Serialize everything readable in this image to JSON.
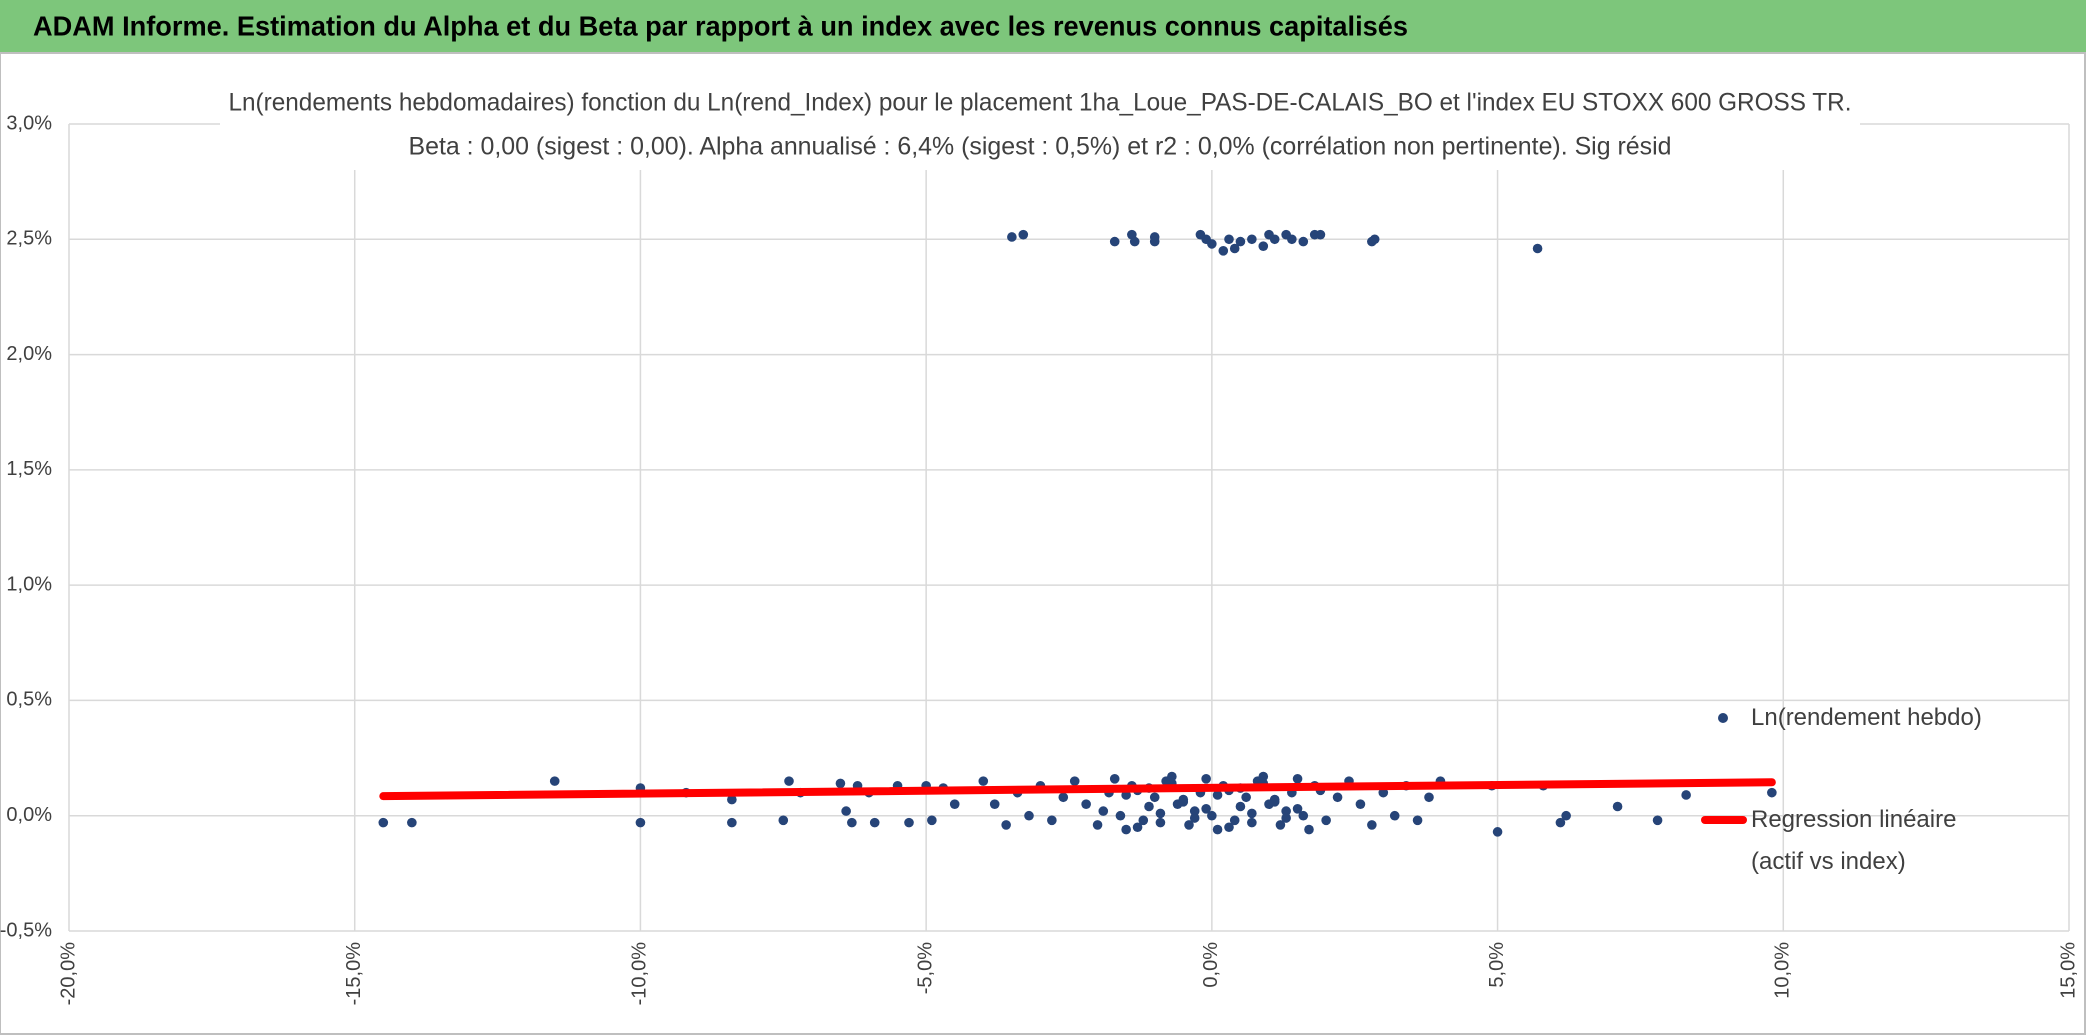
{
  "header": {
    "title": "ADAM Informe. Estimation du Alpha et du Beta par rapport à un index avec les revenus connus capitalisés"
  },
  "chart_data": {
    "type": "scatter",
    "title": "Ln(rendements hebdomadaires) fonction du Ln(rend_Index) pour le placement 1ha_Loue_PAS-DE-CALAIS_BO et l'index EU STOXX 600 GROSS TR.",
    "subtitle": "Beta : 0,00 (sigest : 0,00). Alpha annualisé : 6,4% (sigest : 0,5%) et r2 : 0,0% (corrélation non pertinente). Sig résid",
    "xlim": [
      -20,
      15
    ],
    "xticks": [
      {
        "value": -20,
        "label": "-20,0%"
      },
      {
        "value": -15,
        "label": "-15,0%"
      },
      {
        "value": -10,
        "label": "-10,0%"
      },
      {
        "value": -5,
        "label": "-5,0%"
      },
      {
        "value": 0,
        "label": "0,0%"
      },
      {
        "value": 5,
        "label": "5,0%"
      },
      {
        "value": 10,
        "label": "10,0%"
      },
      {
        "value": 15,
        "label": "15,0%"
      }
    ],
    "ylim": [
      -0.5,
      3.0
    ],
    "yticks": [
      {
        "value": -0.5,
        "label": "-0,5%"
      },
      {
        "value": 0,
        "label": "0,0%"
      },
      {
        "value": 0.5,
        "label": "0,5%"
      },
      {
        "value": 1.0,
        "label": "1,0%"
      },
      {
        "value": 1.5,
        "label": "1,5%"
      },
      {
        "value": 2.0,
        "label": "2,0%"
      },
      {
        "value": 2.5,
        "label": "2,5%"
      },
      {
        "value": 3.0,
        "label": "3,0%"
      }
    ],
    "grid": true,
    "series": [
      {
        "name": "Ln(rendement hebdo)",
        "color": "#264478",
        "x": [
          -3.5,
          -3.3,
          -1.7,
          -1.4,
          -1.35,
          -1.0,
          -1.0,
          -0.2,
          -0.1,
          0.0,
          0.2,
          0.3,
          0.4,
          0.5,
          0.7,
          0.9,
          1.0,
          1.1,
          1.3,
          1.4,
          1.6,
          1.8,
          1.9,
          2.8,
          2.85,
          5.7,
          -14.5,
          -14.0,
          -11.5,
          -10.0,
          -10.0,
          -9.2,
          -8.4,
          -8.4,
          -7.5,
          -7.4,
          -7.2,
          -6.5,
          -6.4,
          -6.3,
          -6.2,
          -6.0,
          -5.9,
          -5.5,
          -5.3,
          -5.0,
          -4.9,
          -4.7,
          -4.5,
          4.9,
          5.0,
          5.8,
          6.1,
          6.2,
          7.1,
          7.8,
          8.3,
          9.8,
          -4.0,
          -3.8,
          -3.6,
          -3.4,
          -3.2,
          -3.0,
          -2.8,
          -2.6,
          -2.4,
          -2.2,
          -2.0,
          -1.8,
          -1.6,
          -1.4,
          -1.2,
          -1.0,
          -0.8,
          -0.6,
          -0.4,
          -0.2,
          0.0,
          0.2,
          0.4,
          0.6,
          0.8,
          1.0,
          1.2,
          1.4,
          1.6,
          1.8,
          2.0,
          2.2,
          2.4,
          2.6,
          2.8,
          3.0,
          3.2,
          3.4,
          3.6,
          3.8,
          4.0,
          -1.9,
          -1.7,
          -1.5,
          -1.3,
          -1.1,
          -0.9,
          -0.7,
          -0.5,
          -0.3,
          -0.1,
          0.1,
          0.3,
          0.5,
          0.7,
          0.9,
          1.1,
          1.3,
          1.5,
          1.7,
          1.9,
          -1.5,
          -1.3,
          -1.1,
          -0.9,
          -0.7,
          -0.5,
          -0.3,
          -0.1,
          0.1,
          0.3,
          0.5,
          0.7,
          0.9,
          1.1,
          1.3,
          1.5
        ],
        "values": [
          2.51,
          2.52,
          2.49,
          2.52,
          2.49,
          2.51,
          2.49,
          2.52,
          2.5,
          2.48,
          2.45,
          2.5,
          2.46,
          2.49,
          2.5,
          2.47,
          2.52,
          2.5,
          2.52,
          2.5,
          2.49,
          2.52,
          2.52,
          2.49,
          2.5,
          2.46,
          -0.03,
          -0.03,
          0.15,
          0.12,
          -0.03,
          0.1,
          0.07,
          -0.03,
          -0.02,
          0.15,
          0.1,
          0.14,
          0.02,
          -0.03,
          0.13,
          0.1,
          -0.03,
          0.13,
          -0.03,
          0.13,
          -0.02,
          0.12,
          0.05,
          0.13,
          -0.07,
          0.13,
          -0.03,
          0.0,
          0.04,
          -0.02,
          0.09,
          0.1,
          0.15,
          0.05,
          -0.04,
          0.1,
          0.0,
          0.13,
          -0.02,
          0.08,
          0.15,
          0.05,
          -0.04,
          0.1,
          0.0,
          0.13,
          -0.02,
          0.08,
          0.15,
          0.05,
          -0.04,
          0.1,
          0.0,
          0.13,
          -0.02,
          0.08,
          0.15,
          0.05,
          -0.04,
          0.1,
          0.0,
          0.13,
          -0.02,
          0.08,
          0.15,
          0.05,
          -0.04,
          0.1,
          0.0,
          0.13,
          -0.02,
          0.08,
          0.15,
          0.02,
          0.16,
          -0.06,
          0.11,
          0.04,
          -0.03,
          0.14,
          0.07,
          0.02,
          0.16,
          -0.06,
          0.11,
          0.04,
          -0.03,
          0.14,
          0.07,
          0.02,
          0.16,
          -0.06,
          0.11,
          0.09,
          -0.05,
          0.12,
          0.01,
          0.17,
          0.06,
          -0.01,
          0.03,
          0.09,
          -0.05,
          0.12,
          0.01,
          0.17,
          0.06,
          -0.01,
          0.03
        ]
      },
      {
        "name": "Regression linéaire (actif vs index)",
        "color": "#ff0000",
        "x": [
          -14.5,
          9.8
        ],
        "values": [
          0.085,
          0.145
        ]
      }
    ]
  }
}
